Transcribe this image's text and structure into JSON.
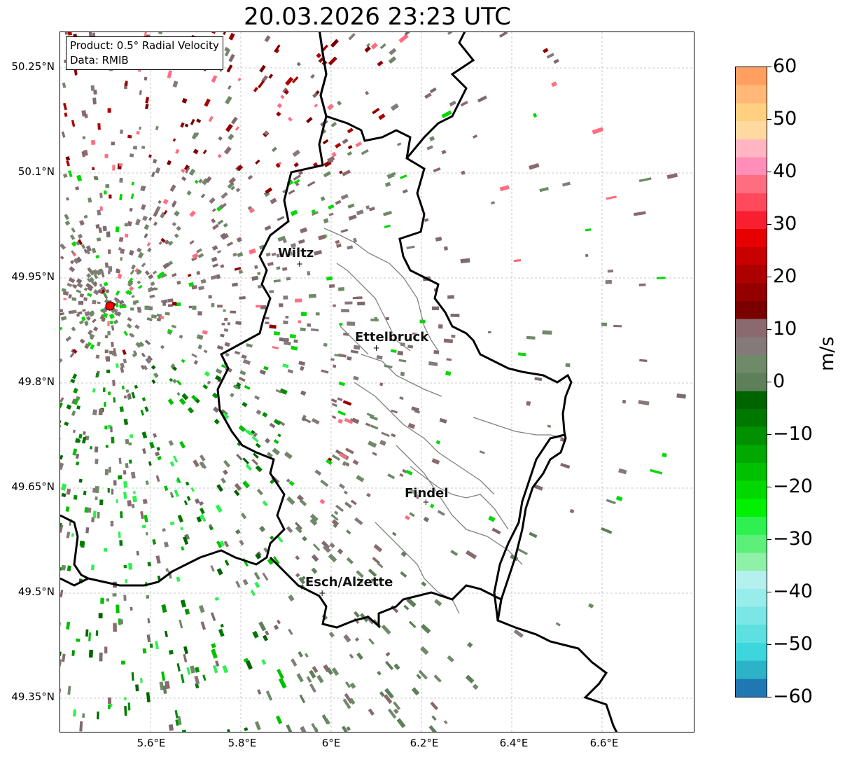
{
  "title": "20.03.2026 23:23 UTC",
  "info_box": {
    "product": "Product: 0.5° Radial Velocity",
    "data": "Data: RMIB"
  },
  "map": {
    "lat_labels": [
      "50.25°N",
      "50.1°N",
      "49.95°N",
      "49.8°N",
      "49.65°N",
      "49.5°N",
      "49.35°N"
    ],
    "lon_labels": [
      "5.6°E",
      "5.8°E",
      "6°E",
      "6.2°E",
      "6.4°E",
      "6.6°E"
    ],
    "cities": [
      {
        "name": "Wiltz",
        "lat": 49.97,
        "lon": 5.93
      },
      {
        "name": "Ettelbruck",
        "lat": 49.85,
        "lon": 6.1
      },
      {
        "name": "Findel",
        "lat": 49.63,
        "lon": 6.21
      },
      {
        "name": "Esch/Alzette",
        "lat": 49.5,
        "lon": 5.98
      }
    ],
    "radar_site": {
      "lat": 49.91,
      "lon": 5.51
    },
    "colors": {
      "border": "#000000",
      "canton_border": "#808080",
      "radar_site": "#ff0000"
    }
  },
  "colorbar": {
    "unit": "m/s",
    "ticks": [
      "60",
      "50",
      "40",
      "30",
      "20",
      "10",
      "0",
      "−10",
      "−20",
      "−30",
      "−40",
      "−50",
      "−60"
    ],
    "range": [
      -60,
      60
    ],
    "colors_bottom_to_top": [
      "#1f78b4",
      "#2db3c8",
      "#3dd6dc",
      "#5ce0e0",
      "#7ae7e6",
      "#98ecea",
      "#b4f0ee",
      "#8ff0a8",
      "#5cf07a",
      "#2ef050",
      "#00f000",
      "#00d800",
      "#00c000",
      "#00a800",
      "#009000",
      "#007800",
      "#006400",
      "#5e7f59",
      "#6e8a68",
      "#857a7a",
      "#8a6a6e",
      "#7a0000",
      "#940000",
      "#ad0000",
      "#c80000",
      "#e60000",
      "#f82030",
      "#ff4a5c",
      "#ff6e80",
      "#ff8fb8",
      "#ffb6c1",
      "#ffd9a0",
      "#ffd080",
      "#ffb878",
      "#ffa060"
    ]
  }
}
